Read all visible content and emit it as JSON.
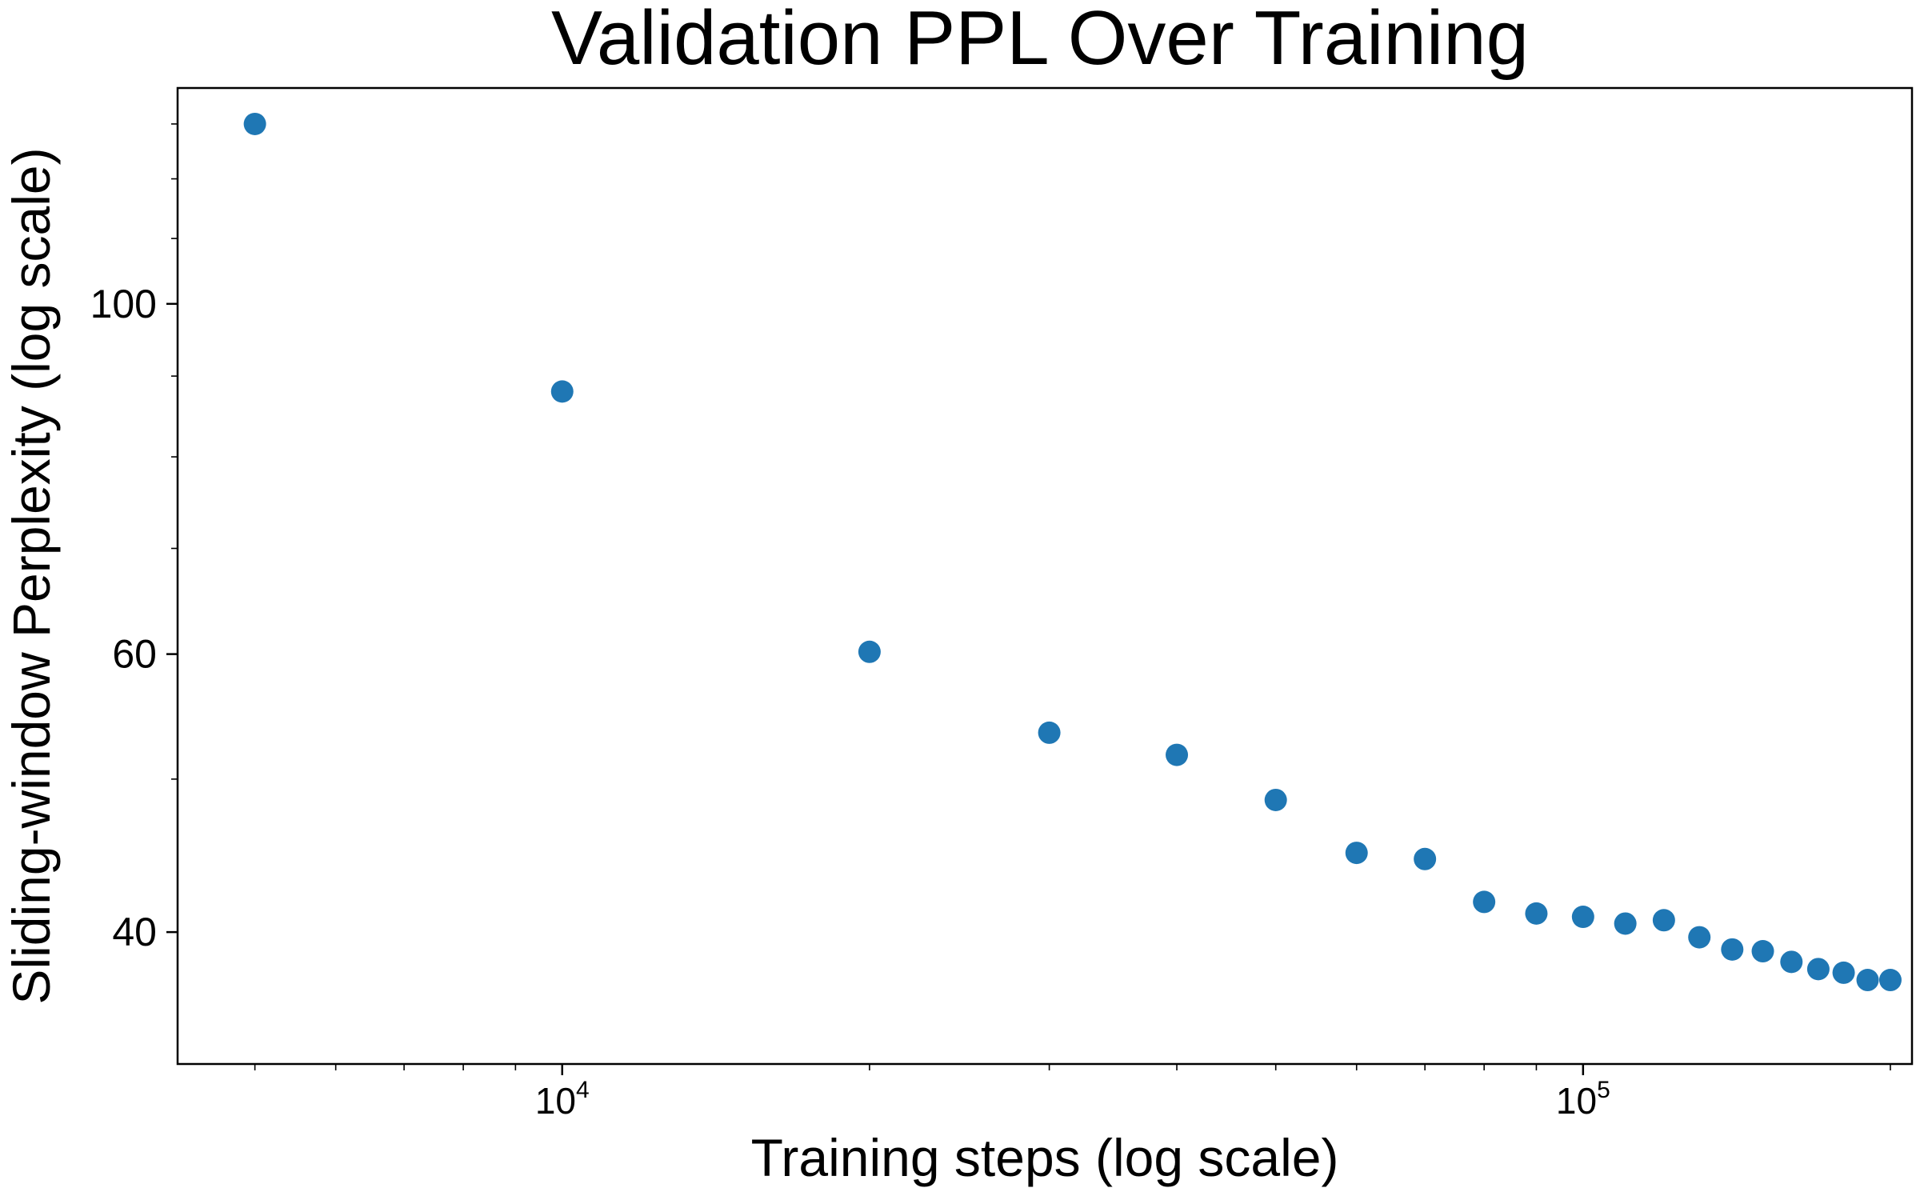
{
  "chart_data": {
    "type": "scatter",
    "title": "Validation PPL Over Training",
    "xlabel": "Training steps (log scale)",
    "ylabel": "Sliding-window Perplexity (log scale)",
    "xscale": "log",
    "yscale": "log",
    "xlim": [
      4200,
      210000
    ],
    "ylim": [
      33,
      137
    ],
    "grid": false,
    "legend": "none",
    "color": "#1f77b4",
    "x_major_ticks": [
      {
        "value": 10000,
        "base": "10",
        "exp": "4"
      },
      {
        "value": 100000,
        "base": "10",
        "exp": "5"
      }
    ],
    "y_major_ticks": [
      {
        "value": 40,
        "label": "40"
      },
      {
        "value": 60,
        "label": "60"
      },
      {
        "value": 100,
        "label": "100"
      }
    ],
    "points": [
      {
        "x": 5000,
        "y": 130
      },
      {
        "x": 10000,
        "y": 88
      },
      {
        "x": 20000,
        "y": 60.2
      },
      {
        "x": 30000,
        "y": 53.5
      },
      {
        "x": 40000,
        "y": 51.8
      },
      {
        "x": 50000,
        "y": 48.5
      },
      {
        "x": 60000,
        "y": 44.9
      },
      {
        "x": 70000,
        "y": 44.5
      },
      {
        "x": 80000,
        "y": 41.8
      },
      {
        "x": 90000,
        "y": 41.1
      },
      {
        "x": 100000,
        "y": 40.9
      },
      {
        "x": 110000,
        "y": 40.5
      },
      {
        "x": 120000,
        "y": 40.7
      },
      {
        "x": 130000,
        "y": 39.7
      },
      {
        "x": 140000,
        "y": 39.0
      },
      {
        "x": 150000,
        "y": 38.9
      },
      {
        "x": 160000,
        "y": 38.3
      },
      {
        "x": 170000,
        "y": 37.9
      },
      {
        "x": 180000,
        "y": 37.7
      },
      {
        "x": 190000,
        "y": 37.3
      },
      {
        "x": 200000,
        "y": 37.3
      }
    ]
  }
}
